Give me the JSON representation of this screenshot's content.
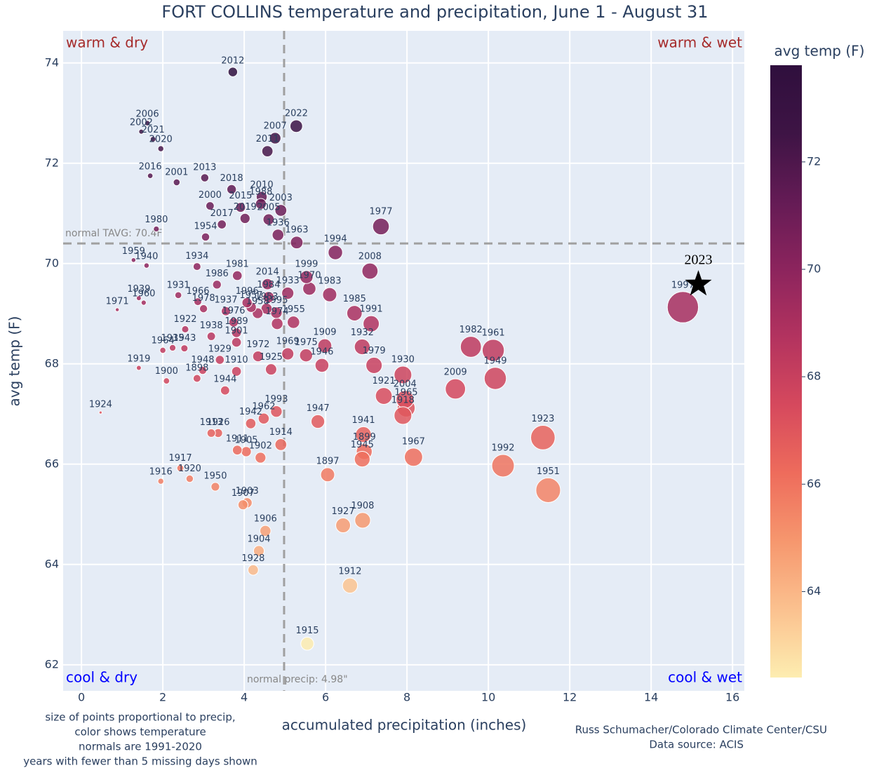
{
  "chart_data": {
    "type": "scatter",
    "title": "FORT COLLINS temperature and precipitation, June 1 - August 31",
    "x_label": "accumulated precipitation (inches)",
    "y_label": "avg temp (F)",
    "xlim": [
      -0.45,
      16.29
    ],
    "ylim": [
      61.48,
      74.64
    ],
    "xticks": [
      0,
      2,
      4,
      6,
      8,
      10,
      12,
      14,
      16
    ],
    "yticks": [
      62,
      64,
      66,
      68,
      70,
      72,
      74
    ],
    "grid": true,
    "colorscale": [
      "#fdedb0",
      "#fbc18f",
      "#f6976e",
      "#ee6c5c",
      "#d6495d",
      "#b3335f",
      "#8c245d",
      "#641b55",
      "#3e1445",
      "#2f0f3d"
    ],
    "colorbar": {
      "title": "avg temp (F)",
      "range": [
        62.4,
        73.8
      ],
      "ticks": [
        64,
        66,
        68,
        70,
        72
      ]
    },
    "labels": [
      "2012",
      "2022",
      "2007",
      "2011",
      "2006",
      "2002",
      "2021",
      "2020",
      "2016",
      "2001",
      "2013",
      "2018",
      "2010",
      "2000",
      "2015",
      "2017",
      "2019",
      "1988",
      "2003",
      "2005",
      "1936",
      "1954",
      "1980",
      "1977",
      "1994",
      "1963",
      "2008",
      "1959",
      "1940",
      "1934",
      "1981",
      "1986",
      "2014",
      "1999",
      "1933",
      "1983",
      "1970",
      "1931",
      "1966",
      "1939",
      "1960",
      "1971",
      "1985",
      "1991",
      "1955",
      "1978",
      "1937",
      "1996",
      "1953",
      "1958",
      "1995",
      "1976",
      "1974",
      "1984",
      "1957",
      "1982",
      "1961",
      "1949",
      "2009",
      "1930",
      "1921",
      "2004",
      "1965",
      "1918",
      "1979",
      "1932",
      "1909",
      "1946",
      "1969",
      "1975",
      "1925",
      "1972",
      "1910",
      "1901",
      "1989",
      "1929",
      "1948",
      "1898",
      "1938",
      "1922",
      "1935",
      "1943",
      "1964",
      "1919",
      "1900",
      "1944",
      "1993",
      "1962",
      "1942",
      "1947",
      "1914",
      "1941",
      "1899",
      "1945",
      "1967",
      "1913",
      "1926",
      "1911",
      "1905",
      "1902",
      "1897",
      "1923",
      "1992",
      "1951",
      "1917",
      "1916",
      "1920",
      "1950",
      "1903",
      "1907",
      "1906",
      "1904",
      "1928",
      "1927",
      "1908",
      "1912",
      "1915",
      "1924",
      "1997"
    ],
    "x": [
      3.72,
      5.28,
      4.76,
      4.57,
      1.62,
      1.47,
      1.76,
      1.95,
      1.69,
      2.34,
      3.03,
      3.69,
      4.43,
      3.16,
      3.91,
      3.45,
      4.02,
      4.41,
      4.9,
      4.6,
      4.83,
      3.05,
      1.84,
      7.36,
      6.24,
      5.29,
      7.09,
      1.28,
      1.6,
      2.84,
      3.83,
      3.33,
      4.57,
      5.53,
      5.07,
      6.1,
      5.6,
      2.38,
      2.86,
      1.41,
      1.53,
      0.88,
      6.71,
      7.12,
      5.21,
      3.0,
      3.55,
      4.07,
      4.55,
      4.33,
      4.79,
      3.74,
      4.81,
      4.6,
      4.17,
      9.57,
      10.12,
      10.17,
      9.19,
      7.9,
      7.43,
      7.95,
      7.98,
      7.9,
      7.19,
      6.9,
      5.98,
      5.91,
      5.07,
      5.52,
      4.66,
      4.34,
      3.81,
      3.81,
      3.81,
      3.4,
      2.98,
      2.84,
      3.19,
      2.55,
      2.24,
      2.53,
      2.0,
      1.41,
      2.09,
      3.53,
      4.79,
      4.48,
      4.16,
      5.81,
      4.9,
      6.93,
      6.95,
      6.9,
      8.16,
      3.19,
      3.36,
      3.83,
      4.05,
      4.4,
      6.05,
      11.34,
      10.36,
      11.47,
      2.43,
      1.95,
      2.66,
      3.29,
      4.07,
      3.97,
      4.52,
      4.36,
      4.22,
      6.43,
      6.91,
      6.6,
      5.55,
      0.47,
      14.78
    ],
    "y": [
      73.82,
      72.74,
      72.5,
      72.24,
      72.8,
      72.63,
      72.48,
      72.29,
      71.75,
      71.62,
      71.71,
      71.48,
      71.33,
      71.15,
      71.12,
      70.78,
      70.9,
      71.19,
      71.06,
      70.88,
      70.57,
      70.53,
      70.69,
      70.74,
      70.22,
      70.42,
      69.85,
      70.07,
      69.96,
      69.94,
      69.76,
      69.58,
      69.59,
      69.73,
      69.41,
      69.38,
      69.5,
      69.37,
      69.24,
      69.31,
      69.22,
      69.08,
      69.01,
      68.8,
      68.83,
      69.1,
      69.05,
      69.22,
      69.1,
      69.01,
      69.02,
      68.83,
      68.8,
      69.33,
      69.13,
      68.34,
      68.27,
      67.71,
      67.5,
      67.78,
      67.36,
      67.29,
      67.12,
      66.97,
      67.97,
      68.34,
      68.36,
      67.97,
      68.2,
      68.17,
      67.89,
      68.15,
      67.85,
      68.43,
      68.62,
      68.08,
      67.87,
      67.71,
      68.55,
      68.69,
      68.32,
      68.31,
      68.27,
      67.92,
      67.66,
      67.47,
      67.05,
      66.91,
      66.81,
      66.85,
      66.39,
      66.59,
      66.25,
      66.1,
      66.14,
      66.62,
      66.62,
      66.28,
      66.25,
      66.13,
      65.79,
      66.53,
      65.97,
      65.48,
      65.92,
      65.66,
      65.71,
      65.55,
      65.23,
      65.19,
      64.67,
      64.27,
      63.89,
      64.78,
      64.88,
      63.58,
      62.42,
      67.03,
      69.13
    ],
    "highlight": {
      "label": "2023",
      "x": 15.16,
      "y": 69.59
    },
    "vline": {
      "x": 4.98,
      "label": "normal precip: 4.98\""
    },
    "hline": {
      "y": 70.4,
      "label": "normal TAVG: 70.4F"
    },
    "quadrants": {
      "warm_dry": "warm & dry",
      "warm_wet": "warm & wet",
      "cool_dry": "cool & dry",
      "cool_wet": "cool & wet"
    },
    "notes": [
      "size of points proportional to precip,",
      "color shows temperature",
      "normals are 1991-2020",
      "years with fewer than 5 missing days shown"
    ],
    "credit": [
      "Russ Schumacher/Colorado Climate Center/CSU",
      "Data source: ACIS"
    ]
  }
}
